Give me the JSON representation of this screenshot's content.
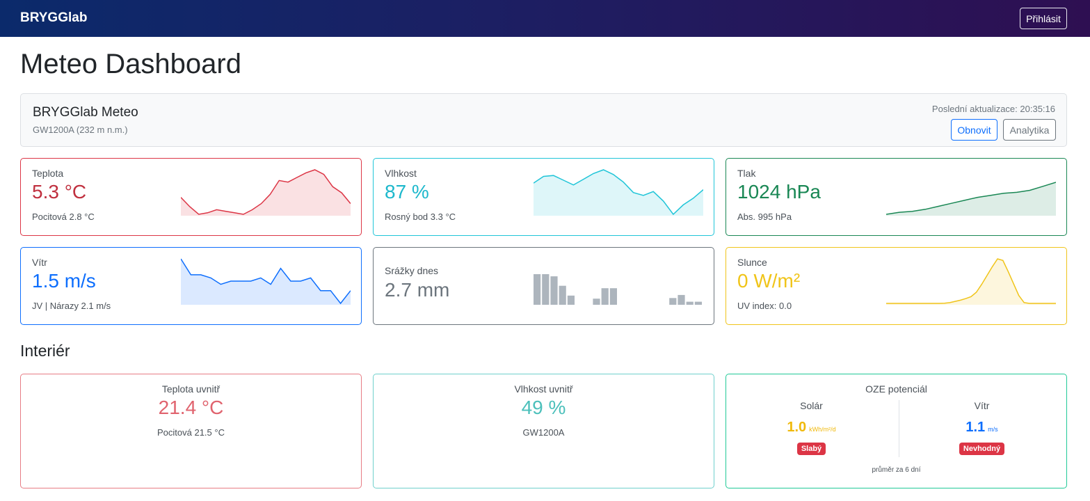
{
  "navbar": {
    "brand": "BRYGGlab",
    "login_label": "Přihlásit"
  },
  "page": {
    "title": "Meteo Dashboard"
  },
  "station": {
    "name": "BRYGGlab Meteo",
    "model": "GW1200A (232 m n.m.)",
    "last_update": "Poslední aktualizace: 20:35:16",
    "refresh_label": "Obnovit",
    "analytics_label": "Analytika"
  },
  "cards": {
    "temperature": {
      "label": "Teplota",
      "value": "5.3 °C",
      "sub": "Pocitová 2.8 °C",
      "color": "#dc3545",
      "spark": [
        5.8,
        5.2,
        4.7,
        4.8,
        5.0,
        4.9,
        4.8,
        4.7,
        5.0,
        5.4,
        6.0,
        6.9,
        6.8,
        7.1,
        7.4,
        7.6,
        7.3,
        6.5,
        6.1,
        5.4
      ]
    },
    "humidity": {
      "label": "Vlhkost",
      "value": "87 %",
      "sub": "Rosný bod 3.3 °C",
      "color": "#20c5d8",
      "spark": [
        88.5,
        89.2,
        89.3,
        88.8,
        88.3,
        88.9,
        89.5,
        89.9,
        89.4,
        88.6,
        87.5,
        87.2,
        87.6,
        86.6,
        85.2,
        86.2,
        86.9,
        87.8
      ]
    },
    "pressure": {
      "label": "Tlak",
      "value": "1024 hPa",
      "sub": "Abs. 995 hPa",
      "color": "#198754",
      "spark": [
        1021.3,
        1021.5,
        1021.6,
        1021.8,
        1022.1,
        1022.4,
        1022.7,
        1023.0,
        1023.2,
        1023.4,
        1023.5,
        1023.7,
        1024.1,
        1024.5
      ]
    },
    "wind": {
      "label": "Vítr",
      "value": "1.5 m/s",
      "sub": "JV | Nárazy 2.1 m/s",
      "color": "#0d6efd",
      "spark": [
        2.6,
        2.1,
        2.1,
        2.0,
        1.8,
        1.9,
        1.9,
        1.9,
        2.0,
        1.8,
        2.3,
        1.9,
        1.9,
        2.0,
        1.6,
        1.6,
        1.2,
        1.6
      ]
    },
    "rain": {
      "label": "Srážky dnes",
      "value": "2.7 mm",
      "color": "#6c757d",
      "bars": [
        1.0,
        1.0,
        0.93,
        0.62,
        0.3,
        0.0,
        0.0,
        0.2,
        0.54,
        0.54,
        0.0,
        0.0,
        0.0,
        0.0,
        0.0,
        0.0,
        0.22,
        0.32,
        0.1,
        0.1
      ]
    },
    "sun": {
      "label": "Slunce",
      "value": "0 W/m²",
      "sub": "UV index: 0.0",
      "color": "#f0c419",
      "spark": [
        0,
        0,
        0,
        0,
        0,
        0,
        0,
        0,
        0,
        0,
        0,
        2,
        10,
        25,
        40,
        60,
        85,
        140,
        240,
        350,
        460,
        560,
        540,
        400,
        250,
        100,
        10,
        0,
        0,
        0,
        0,
        0,
        0
      ]
    }
  },
  "interior": {
    "title": "Interiér",
    "temperature": {
      "label": "Teplota uvnitř",
      "value": "21.4 °C",
      "sub": "Pocitová 21.5 °C"
    },
    "humidity": {
      "label": "Vlhkost uvnitř",
      "value": "49 %",
      "sub": "GW1200A"
    },
    "oze": {
      "title": "OZE potenciál",
      "solar": {
        "label": "Solár",
        "value": "1.0",
        "unit": "kWh/m²/d",
        "badge": "Slabý"
      },
      "wind": {
        "label": "Vítr",
        "value": "1.1",
        "unit": "m/s",
        "badge": "Nevhodný"
      },
      "note": "průměr za 6 dní"
    }
  }
}
